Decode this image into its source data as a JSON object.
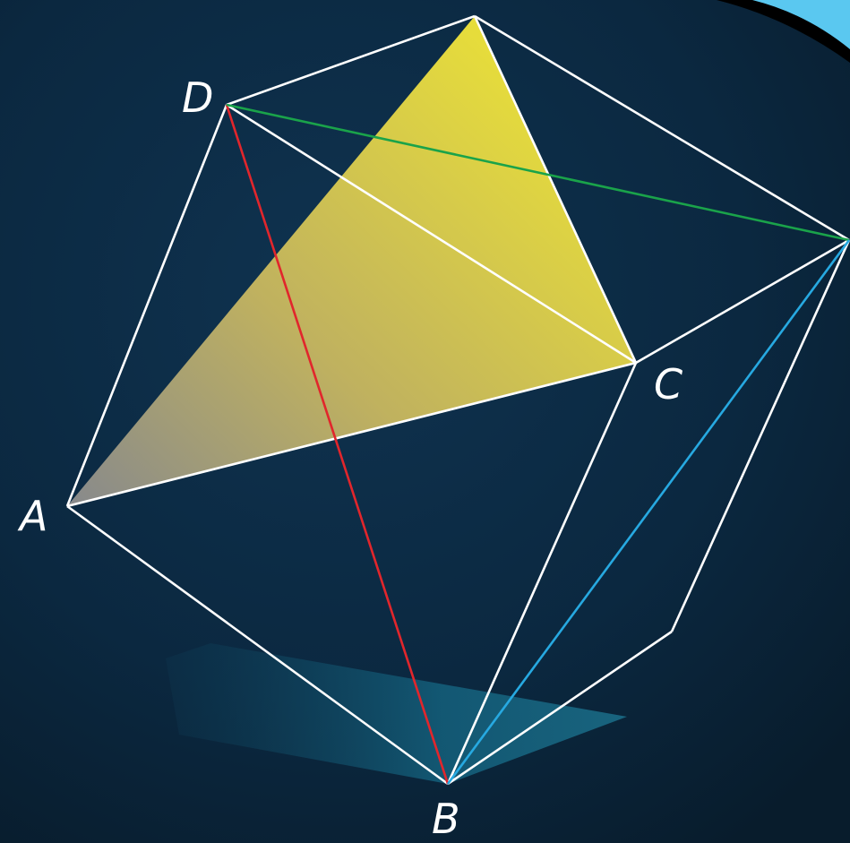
{
  "diagram": {
    "labels": {
      "A": "A",
      "B": "B",
      "C": "C",
      "D": "D"
    },
    "colors": {
      "background": "#0b2236",
      "edges": "#ffffff",
      "diagonal_DB": "#e1262c",
      "diagonal_D_to_right": "#1aa34a",
      "diagonal_B_to_right": "#27a9e1",
      "triangle_top": "#f2e63a",
      "triangle_bottom_left": "#8f8f8f",
      "shadow": "#1a6b86",
      "corner_accent": "#5ac8f0"
    }
  }
}
